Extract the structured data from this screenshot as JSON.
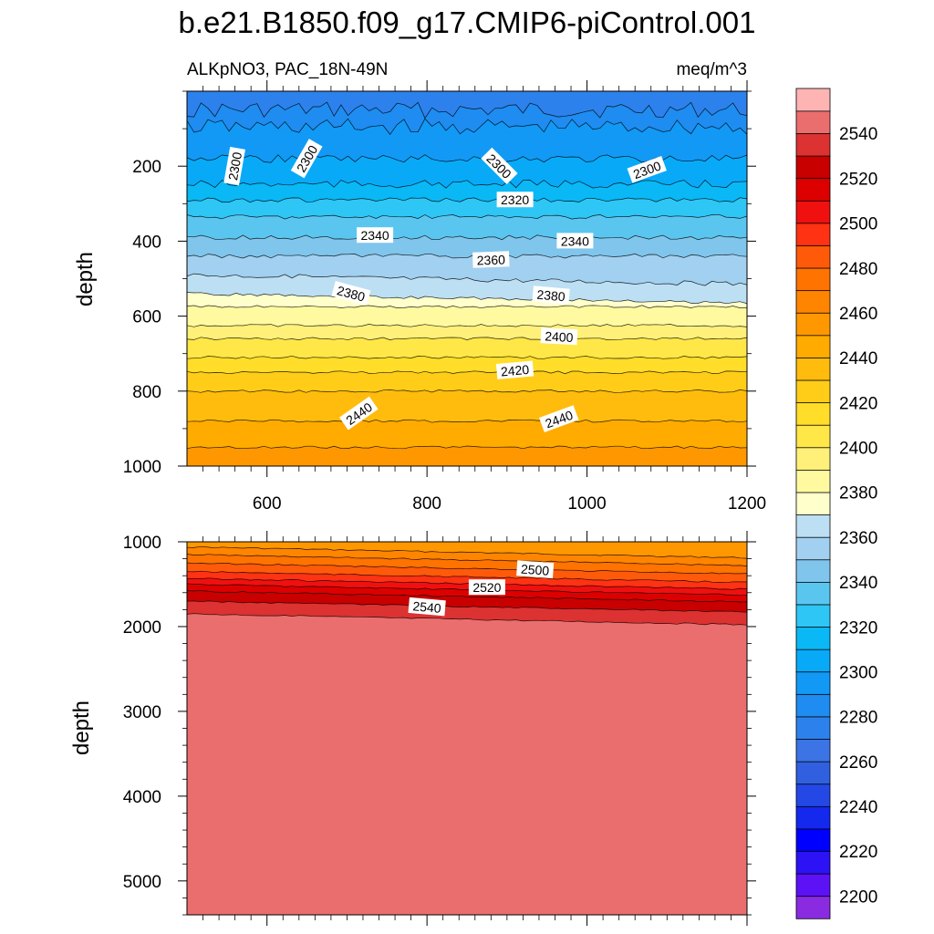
{
  "chart_data": {
    "type": "contour",
    "title": "b.e21.B1850.f09_g17.CMIP6-piControl.001",
    "variable_label": "ALKpNO3, PAC_18N-49N",
    "units_label": "meq/m^3",
    "colorbar": {
      "levels": [
        2200,
        2210,
        2220,
        2230,
        2240,
        2250,
        2260,
        2270,
        2280,
        2290,
        2300,
        2310,
        2320,
        2330,
        2340,
        2350,
        2360,
        2370,
        2380,
        2390,
        2400,
        2410,
        2420,
        2430,
        2440,
        2450,
        2460,
        2470,
        2480,
        2490,
        2500,
        2510,
        2520,
        2530,
        2540,
        2550
      ],
      "tick_labels": [
        "2200",
        "2220",
        "2240",
        "2260",
        "2280",
        "2300",
        "2320",
        "2340",
        "2360",
        "2380",
        "2400",
        "2420",
        "2440",
        "2460",
        "2480",
        "2500",
        "2520",
        "2540"
      ],
      "colors": [
        "#8a2be2",
        "#5d12f5",
        "#2d12f5",
        "#0000ff",
        "#1528ee",
        "#2348e6",
        "#3060e0",
        "#3c74e6",
        "#2d81ec",
        "#1e8cf0",
        "#1299f5",
        "#08aaf8",
        "#0ab8f5",
        "#2ec6f5",
        "#5ac6f0",
        "#80c5ec",
        "#a2d0f0",
        "#bcdff3",
        "#ffffcb",
        "#fffaa0",
        "#fff07a",
        "#ffe748",
        "#ffdd28",
        "#ffcd18",
        "#ffbc0c",
        "#ffab00",
        "#ff9800",
        "#ff8500",
        "#ff7300",
        "#ff5a0a",
        "#ff3214",
        "#f01010",
        "#dc0000",
        "#c80000",
        "#dc3232",
        "#eb6e6e",
        "#ffb4b4"
      ]
    },
    "upper_panel": {
      "xlabel": "",
      "ylabel": "depth",
      "xlim": [
        500,
        1200
      ],
      "ylim": [
        1000,
        0
      ],
      "x_ticks": [
        600,
        800,
        1000,
        1200
      ],
      "y_ticks": [
        200,
        400,
        600,
        800,
        1000
      ],
      "contour_depths": [
        {
          "level": 2280,
          "y": 50
        },
        {
          "level": 2290,
          "y": 95
        },
        {
          "level": 2300,
          "y": 180
        },
        {
          "level": 2310,
          "y": 248
        },
        {
          "level": 2320,
          "y": 290
        },
        {
          "level": 2330,
          "y": 335
        },
        {
          "level": 2340,
          "y": 390
        },
        {
          "level": 2350,
          "y": 440
        },
        {
          "level": 2360,
          "y": 490
        },
        {
          "level": 2370,
          "y": 540
        },
        {
          "level": 2380,
          "y": 575
        },
        {
          "level": 2390,
          "y": 625
        },
        {
          "level": 2400,
          "y": 660
        },
        {
          "level": 2410,
          "y": 710
        },
        {
          "level": 2420,
          "y": 750
        },
        {
          "level": 2430,
          "y": 800
        },
        {
          "level": 2440,
          "y": 880
        },
        {
          "level": 2450,
          "y": 950
        }
      ],
      "contour_labels": [
        {
          "text": "2300",
          "x": 560,
          "y": 200
        },
        {
          "text": "2300",
          "x": 650,
          "y": 180
        },
        {
          "text": "2300",
          "x": 890,
          "y": 200
        },
        {
          "text": "2300",
          "x": 1075,
          "y": 210
        },
        {
          "text": "2320",
          "x": 910,
          "y": 290
        },
        {
          "text": "2340",
          "x": 735,
          "y": 385
        },
        {
          "text": "2340",
          "x": 985,
          "y": 400
        },
        {
          "text": "2360",
          "x": 880,
          "y": 450
        },
        {
          "text": "2380",
          "x": 705,
          "y": 540
        },
        {
          "text": "2380",
          "x": 955,
          "y": 545
        },
        {
          "text": "2400",
          "x": 965,
          "y": 655
        },
        {
          "text": "2420",
          "x": 910,
          "y": 745
        },
        {
          "text": "2440",
          "x": 715,
          "y": 860
        },
        {
          "text": "2440",
          "x": 965,
          "y": 875
        }
      ]
    },
    "lower_panel": {
      "xlabel": "",
      "ylabel": "depth",
      "xlim": [
        500,
        1200
      ],
      "ylim": [
        5400,
        1000
      ],
      "y_ticks": [
        1000,
        2000,
        3000,
        4000,
        5000
      ],
      "contour_depths": [
        {
          "level": 2460,
          "y": 1060
        },
        {
          "level": 2470,
          "y": 1150
        },
        {
          "level": 2480,
          "y": 1250
        },
        {
          "level": 2490,
          "y": 1350
        },
        {
          "level": 2500,
          "y": 1430
        },
        {
          "level": 2510,
          "y": 1500
        },
        {
          "level": 2520,
          "y": 1580
        },
        {
          "level": 2530,
          "y": 1700
        },
        {
          "level": 2540,
          "y": 1850
        }
      ],
      "contour_labels": [
        {
          "text": "2500",
          "x": 935,
          "y": 1330
        },
        {
          "text": "2520",
          "x": 875,
          "y": 1540
        },
        {
          "text": "2540",
          "x": 800,
          "y": 1770
        }
      ]
    }
  }
}
